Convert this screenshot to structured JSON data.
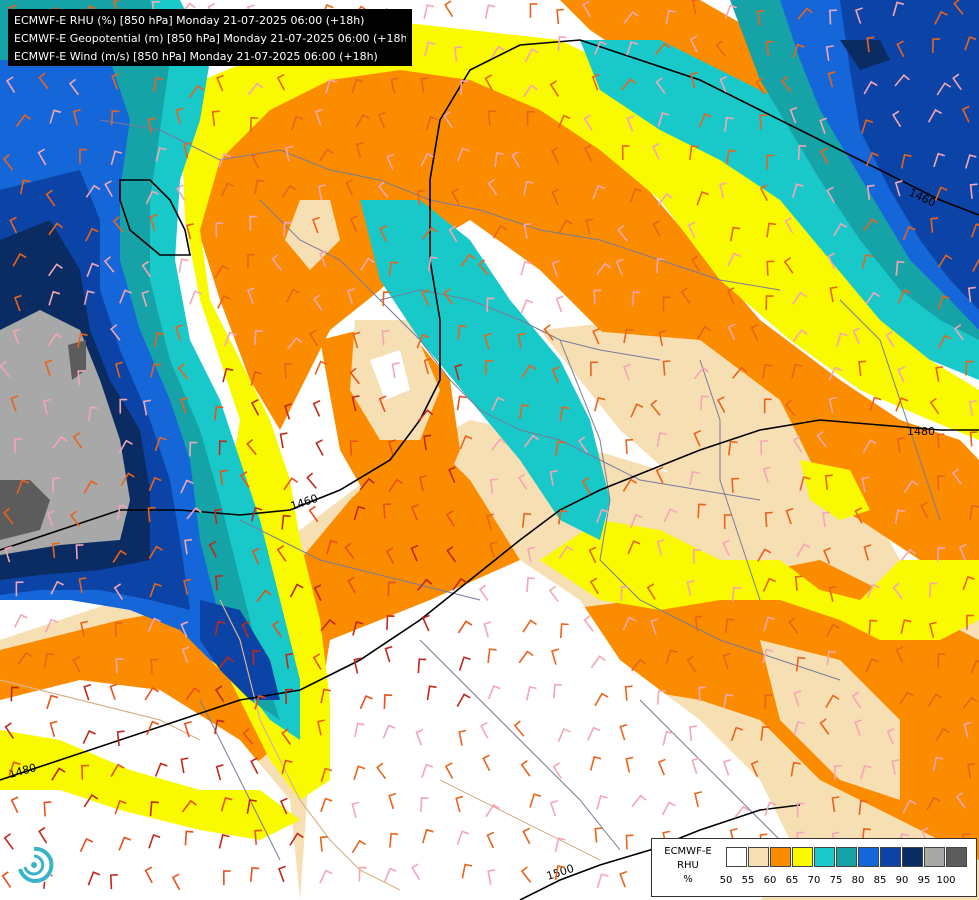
{
  "header": {
    "lines": [
      "ECMWF-E RHU (%) [850 hPa] Monday 21-07-2025 06:00 (+18h)",
      "ECMWF-E Geopotential (m) [850 hPa] Monday 21-07-2025 06:00 (+18h)",
      "ECMWF-E Wind (m/s) [850 hPa] Monday 21-07-2025 06:00 (+18h)"
    ]
  },
  "legend": {
    "title_lines": [
      "ECMWF-E",
      "RHU",
      "%"
    ],
    "levels": [
      "50",
      "55",
      "60",
      "65",
      "70",
      "75",
      "80",
      "85",
      "90",
      "95",
      "100"
    ],
    "colors": [
      "#ffffff",
      "#f7dfb4",
      "#fb8c00",
      "#f9f900",
      "#19c8c8",
      "#16a3a8",
      "#1566d8",
      "#0b44a6",
      "#0b2b63",
      "#a8a8a8",
      "#5c5c5c"
    ]
  },
  "contours": {
    "labels": [
      "1460",
      "1460",
      "1480",
      "1480",
      "1500"
    ]
  },
  "palette": {
    "background": "#ffffff",
    "info_box": "#000000",
    "contour": "#000000",
    "borders": "#7a7a9a"
  }
}
